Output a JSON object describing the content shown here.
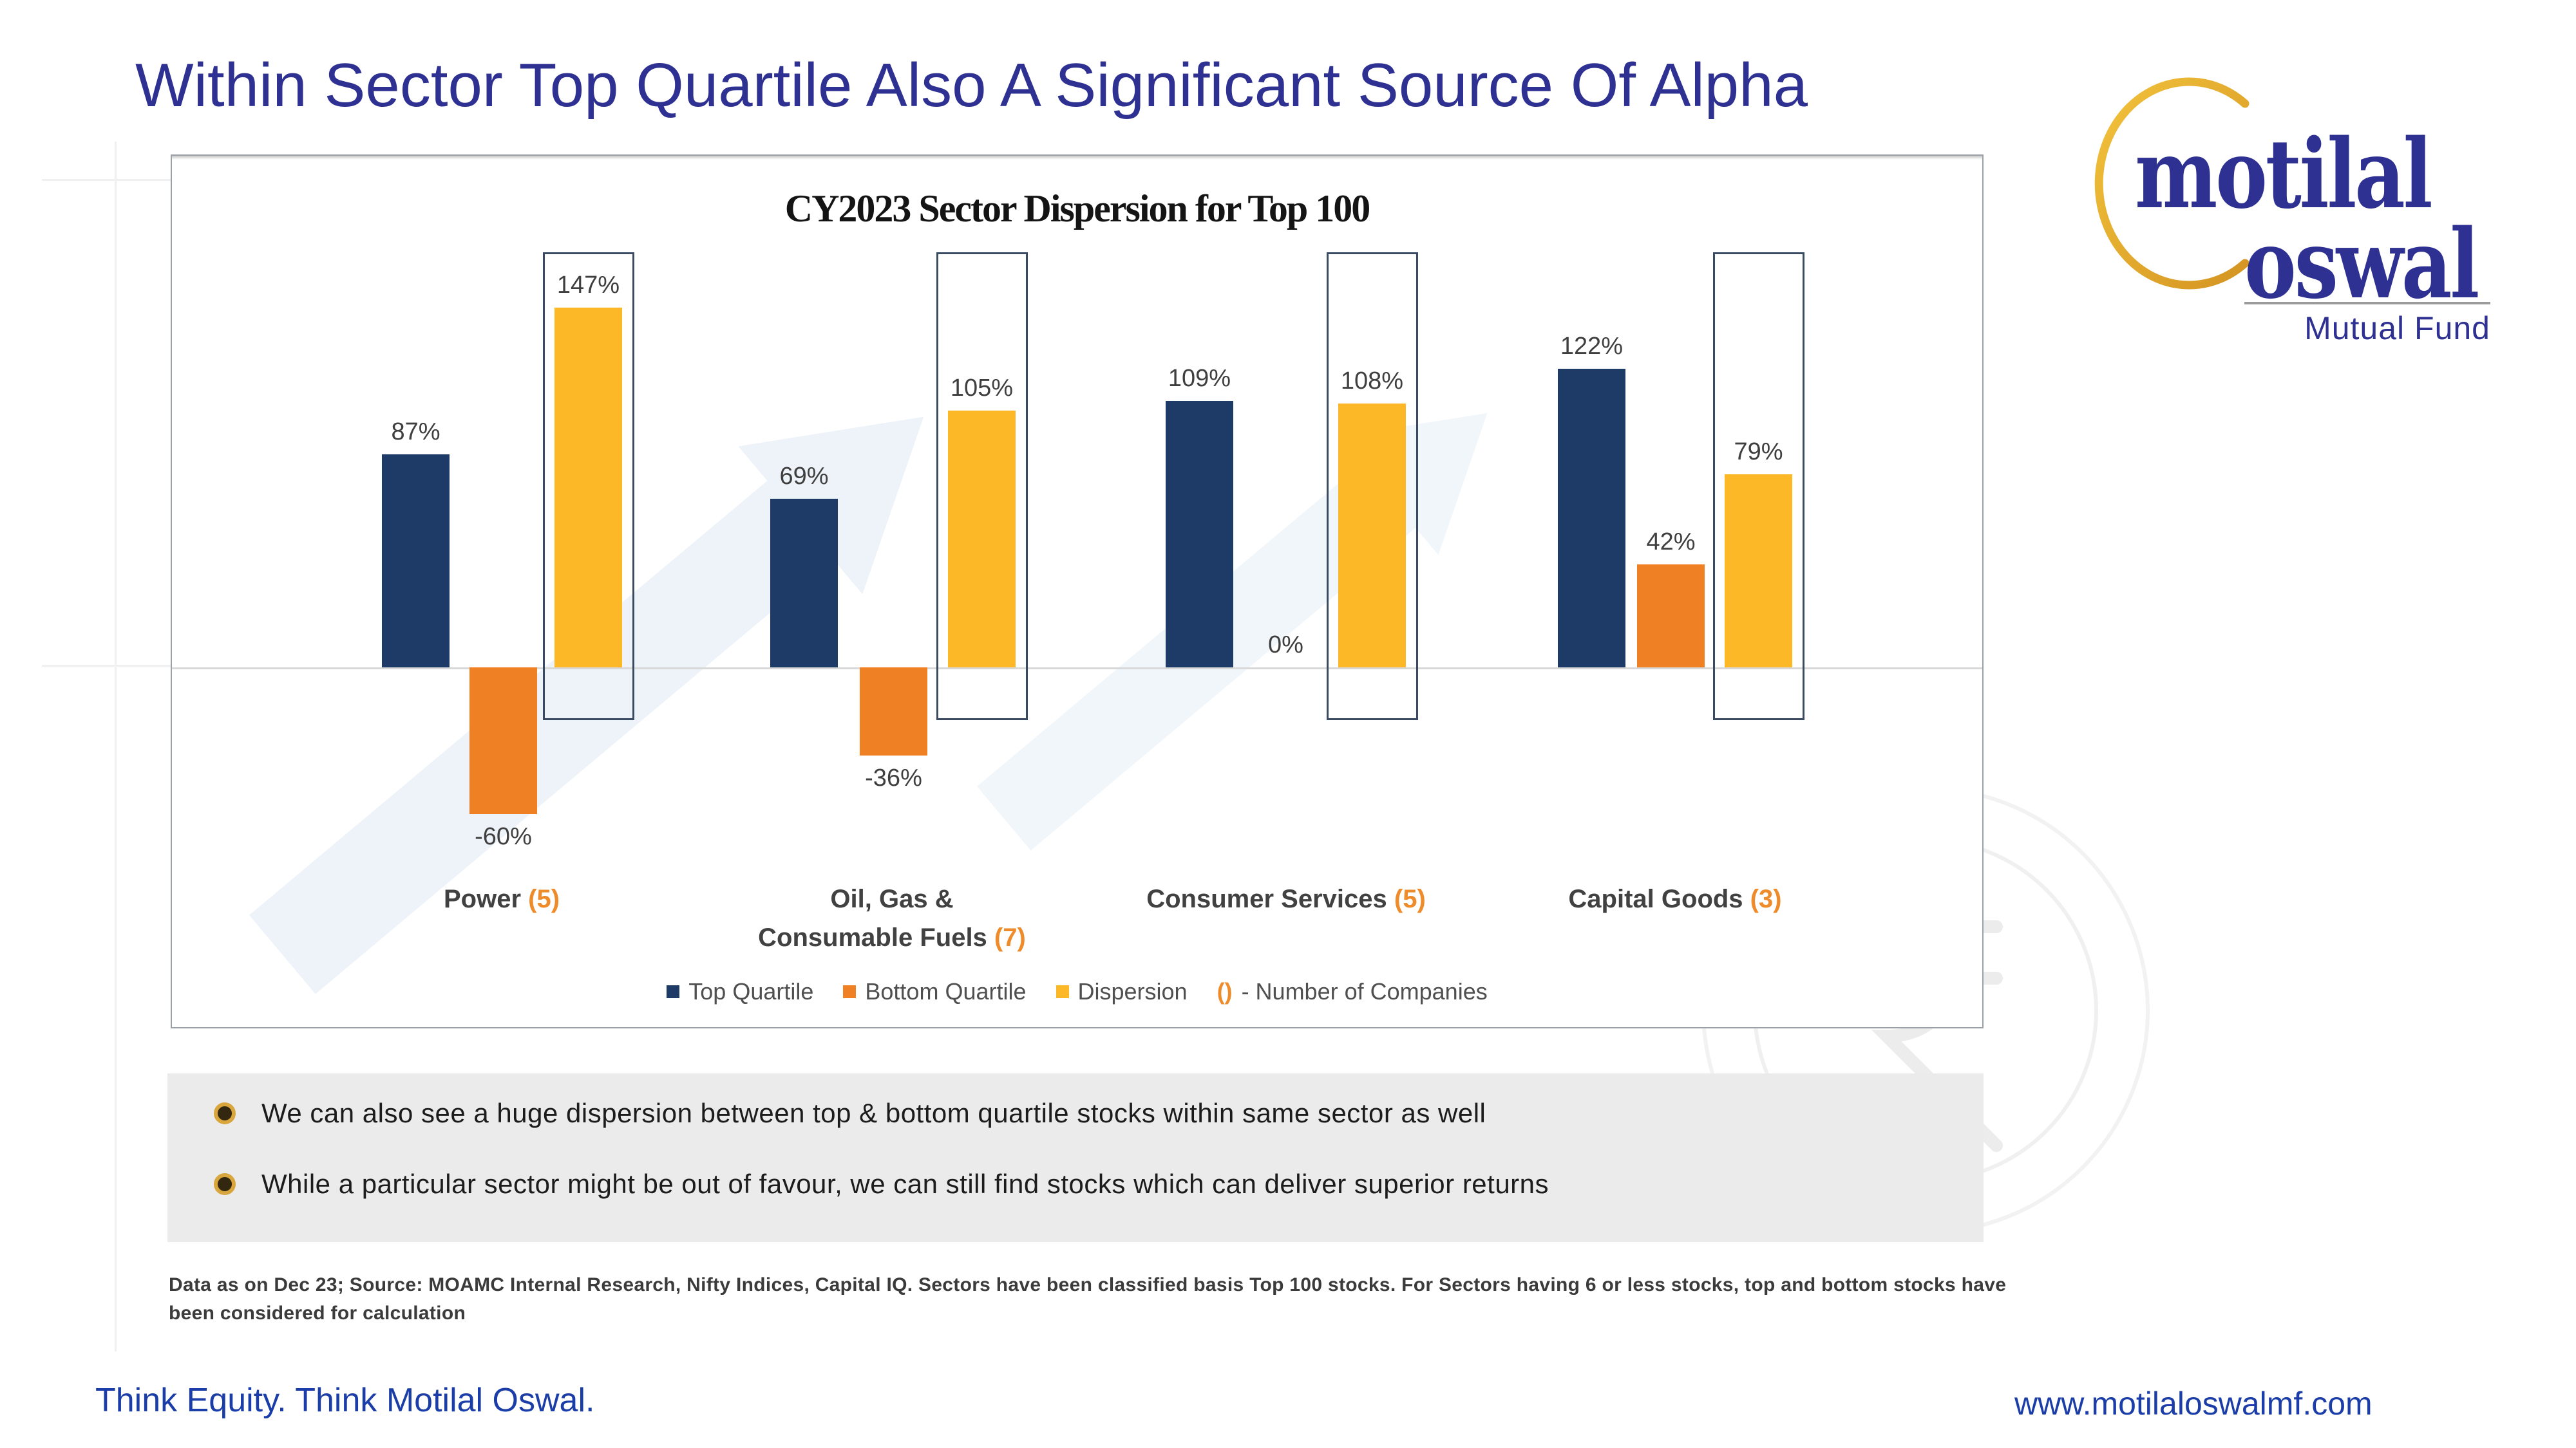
{
  "slide": {
    "title": "Within Sector Top Quartile Also A Significant Source Of Alpha",
    "bullets": [
      "We can also see a huge dispersion between top & bottom quartile stocks within same sector as well",
      "While a particular sector might be out of favour, we can still find stocks which can deliver superior returns"
    ],
    "footnote": "Data as on Dec 23; Source: MOAMC Internal Research, Nifty Indices, Capital IQ. Sectors have been classified basis Top 100 stocks. For Sectors having 6 or less stocks, top and bottom stocks have been considered for calculation",
    "footer_left": "Think Equity. Think Motilal Oswal.",
    "footer_right": "www.motilaloswalmf.com",
    "logo": {
      "word1": "motilal",
      "word2": "oswal",
      "tagline": "Mutual Fund",
      "gold": "#e5a92e",
      "navy": "#2e3192"
    }
  },
  "chart_data": {
    "type": "bar",
    "title": "CY2023 Sector Dispersion for Top 100",
    "categories": [
      {
        "lines": [
          "Power"
        ],
        "count": "(5)"
      },
      {
        "lines": [
          "Oil, Gas &",
          "Consumable Fuels"
        ],
        "count": "(7)"
      },
      {
        "lines": [
          "Consumer Services"
        ],
        "count": "(5)"
      },
      {
        "lines": [
          "Capital Goods"
        ],
        "count": "(3)"
      }
    ],
    "series": [
      {
        "name": "Top Quartile",
        "color": "#1e3a66",
        "values": [
          87,
          69,
          109,
          122
        ]
      },
      {
        "name": "Bottom Quartile",
        "color": "#ef8023",
        "values": [
          -60,
          -36,
          0,
          42
        ]
      },
      {
        "name": "Dispersion",
        "color": "#fdb827",
        "values": [
          147,
          105,
          108,
          79
        ],
        "boxed": true
      }
    ],
    "value_suffix": "%",
    "legend_note": {
      "symbol": "()",
      "text": "- Number of Companies"
    },
    "ylim": [
      -80,
      175
    ],
    "gridlines": "none",
    "legend_position": "bottom",
    "axis_labels": "hidden"
  }
}
